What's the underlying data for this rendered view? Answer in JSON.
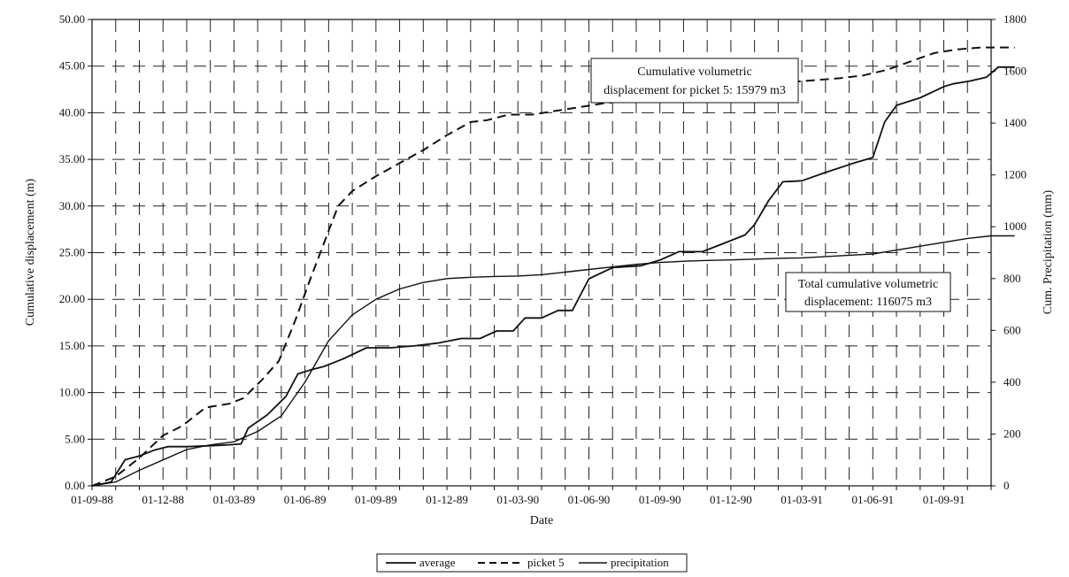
{
  "chart_data": {
    "type": "line",
    "xlabel": "Date",
    "ylabel_left": "Cumulative displacement (m)",
    "ylabel_right": "Cum. Precipitation (mm)",
    "x_ticks": [
      "01-09-88",
      "01-12-88",
      "01-03-89",
      "01-06-89",
      "01-09-89",
      "01-12-89",
      "01-03-90",
      "01-06-90",
      "01-09-90",
      "01-12-90",
      "01-03-91",
      "01-06-91",
      "01-09-91"
    ],
    "y_left_ticks": [
      "0.00",
      "5.00",
      "10.00",
      "15.00",
      "20.00",
      "25.00",
      "30.00",
      "35.00",
      "40.00",
      "45.00",
      "50.00"
    ],
    "y_right_ticks": [
      "0",
      "200",
      "400",
      "600",
      "800",
      "1000",
      "1200",
      "1400",
      "1600",
      "1800"
    ],
    "y_left_range": [
      0,
      50
    ],
    "y_right_range": [
      0,
      1800
    ],
    "x_range_months": [
      0,
      38
    ],
    "grid": "dashed",
    "legend_position": "bottom",
    "annotations": [
      {
        "lines": [
          "Cumulative volumetric",
          "displacement for picket 5: 15979 m3"
        ]
      },
      {
        "lines": [
          "Total cumulative volumetric",
          "displacement: 116075 m3"
        ]
      }
    ],
    "series": [
      {
        "name": "average",
        "axis": "left",
        "style": "solid",
        "points": [
          [
            0,
            0
          ],
          [
            0.8,
            0.4
          ],
          [
            1.4,
            2.8
          ],
          [
            2,
            3.2
          ],
          [
            2.6,
            3.8
          ],
          [
            3.2,
            4.2
          ],
          [
            4,
            4.2
          ],
          [
            5,
            4.3
          ],
          [
            5.8,
            4.4
          ],
          [
            6.3,
            4.5
          ],
          [
            6.6,
            6.2
          ],
          [
            7.4,
            7.6
          ],
          [
            8.2,
            9.6
          ],
          [
            8.7,
            12
          ],
          [
            9.2,
            12.4
          ],
          [
            9.8,
            12.8
          ],
          [
            10.6,
            13.6
          ],
          [
            11.6,
            14.8
          ],
          [
            12.6,
            14.8
          ],
          [
            13.6,
            15
          ],
          [
            14.6,
            15.3
          ],
          [
            15.6,
            15.8
          ],
          [
            16.4,
            15.8
          ],
          [
            17.1,
            16.6
          ],
          [
            17.8,
            16.6
          ],
          [
            18.3,
            18
          ],
          [
            19,
            18
          ],
          [
            19.7,
            18.8
          ],
          [
            20.3,
            18.8
          ],
          [
            21,
            22.2
          ],
          [
            22,
            23.4
          ],
          [
            23.2,
            23.6
          ],
          [
            24,
            24.2
          ],
          [
            24.8,
            25.1
          ],
          [
            25.8,
            25.1
          ],
          [
            26.7,
            26
          ],
          [
            27.6,
            26.9
          ],
          [
            28,
            28
          ],
          [
            28.6,
            30.6
          ],
          [
            29.2,
            32.6
          ],
          [
            30,
            32.7
          ],
          [
            31,
            33.6
          ],
          [
            32.2,
            34.6
          ],
          [
            33,
            35.2
          ],
          [
            33.5,
            39
          ],
          [
            34,
            40.8
          ],
          [
            35,
            41.6
          ],
          [
            36,
            42.8
          ],
          [
            36.4,
            43.1
          ],
          [
            37.1,
            43.4
          ],
          [
            37.8,
            43.8
          ],
          [
            38.3,
            44.9
          ],
          [
            39,
            44.9
          ]
        ]
      },
      {
        "name": "picket 5",
        "axis": "left",
        "style": "dashed",
        "points": [
          [
            0,
            0
          ],
          [
            1,
            1
          ],
          [
            2,
            3
          ],
          [
            3,
            5.4
          ],
          [
            3.8,
            6.4
          ],
          [
            4.8,
            8.4
          ],
          [
            5.8,
            8.8
          ],
          [
            6.4,
            9.4
          ],
          [
            7.2,
            11.4
          ],
          [
            7.9,
            13.4
          ],
          [
            8.6,
            17.8
          ],
          [
            9.2,
            22
          ],
          [
            9.8,
            26
          ],
          [
            10.4,
            30
          ],
          [
            11,
            31.6
          ],
          [
            12,
            33.2
          ],
          [
            13,
            34.6
          ],
          [
            14,
            36
          ],
          [
            15,
            37.6
          ],
          [
            16,
            39
          ],
          [
            16.7,
            39.2
          ],
          [
            17.6,
            39.8
          ],
          [
            18.6,
            39.8
          ],
          [
            19.6,
            40.2
          ],
          [
            20.6,
            40.6
          ],
          [
            21.6,
            41
          ],
          [
            22.6,
            41.3
          ],
          [
            23.6,
            41.4
          ],
          [
            24.6,
            41.9
          ],
          [
            25.6,
            42.4
          ],
          [
            26.6,
            42.8
          ],
          [
            27.6,
            43
          ],
          [
            28.6,
            43.2
          ],
          [
            29.6,
            43.3
          ],
          [
            30.6,
            43.5
          ],
          [
            31.6,
            43.7
          ],
          [
            32.6,
            44
          ],
          [
            33.6,
            44.6
          ],
          [
            34.6,
            45.5
          ],
          [
            35.6,
            46.4
          ],
          [
            36.6,
            46.8
          ],
          [
            37.6,
            47
          ],
          [
            38.6,
            47
          ],
          [
            39,
            47
          ]
        ]
      },
      {
        "name": "precipitation",
        "axis": "right",
        "style": "solid",
        "points": [
          [
            0,
            0
          ],
          [
            1,
            15
          ],
          [
            2,
            60
          ],
          [
            3,
            100
          ],
          [
            4,
            140
          ],
          [
            5,
            158
          ],
          [
            6,
            170
          ],
          [
            7,
            210
          ],
          [
            8,
            270
          ],
          [
            9,
            400
          ],
          [
            10,
            560
          ],
          [
            11,
            660
          ],
          [
            12,
            720
          ],
          [
            13,
            760
          ],
          [
            14,
            785
          ],
          [
            15,
            800
          ],
          [
            16,
            805
          ],
          [
            17,
            808
          ],
          [
            18,
            810
          ],
          [
            19,
            815
          ],
          [
            20,
            825
          ],
          [
            21,
            835
          ],
          [
            22,
            845
          ],
          [
            23,
            855
          ],
          [
            24,
            862
          ],
          [
            25,
            867
          ],
          [
            26,
            870
          ],
          [
            27,
            872
          ],
          [
            28,
            875
          ],
          [
            29,
            878
          ],
          [
            30,
            880
          ],
          [
            31,
            885
          ],
          [
            32,
            890
          ],
          [
            33,
            895
          ],
          [
            34,
            910
          ],
          [
            35,
            925
          ],
          [
            36,
            940
          ],
          [
            37,
            955
          ],
          [
            38,
            965
          ],
          [
            39,
            965
          ]
        ]
      }
    ]
  }
}
